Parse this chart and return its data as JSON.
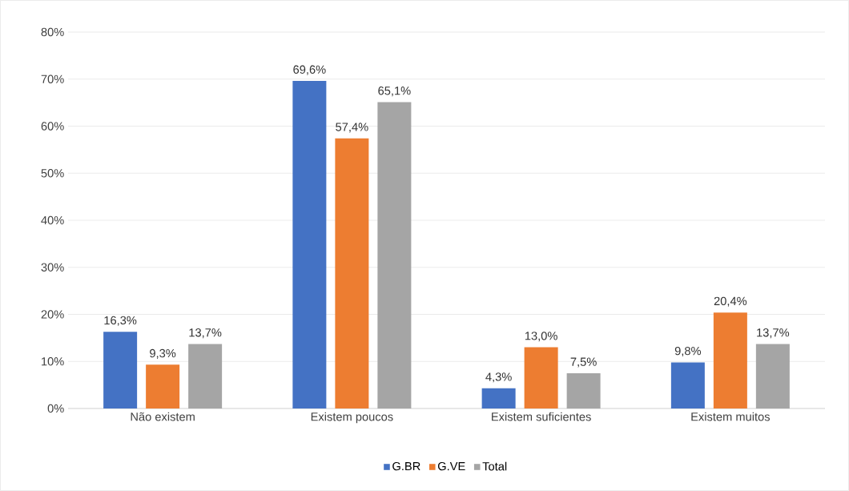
{
  "chart_data": {
    "type": "bar",
    "categories": [
      "Não existem",
      "Existem poucos",
      "Existem suficientes",
      "Existem muitos"
    ],
    "series": [
      {
        "name": "G.BR",
        "color": "#4472c4",
        "values": [
          16.3,
          69.6,
          4.3,
          9.8
        ],
        "value_labels": [
          "16,3%",
          "69,6%",
          "4,3%",
          "9,8%"
        ]
      },
      {
        "name": "G.VE",
        "color": "#ed7d31",
        "values": [
          9.3,
          57.4,
          13.0,
          20.4
        ],
        "value_labels": [
          "9,3%",
          "57,4%",
          "13,0%",
          "20,4%"
        ]
      },
      {
        "name": "Total",
        "color": "#a5a5a5",
        "values": [
          13.7,
          65.1,
          7.5,
          13.7
        ],
        "value_labels": [
          "13,7%",
          "65,1%",
          "7,5%",
          "13,7%"
        ]
      }
    ],
    "ylim": [
      0,
      80
    ],
    "yticks": [
      {
        "value": 0,
        "label": "0%"
      },
      {
        "value": 10,
        "label": "10%"
      },
      {
        "value": 20,
        "label": "20%"
      },
      {
        "value": 30,
        "label": "30%"
      },
      {
        "value": 40,
        "label": "40%"
      },
      {
        "value": 50,
        "label": "50%"
      },
      {
        "value": 60,
        "label": "60%"
      },
      {
        "value": 70,
        "label": "70%"
      },
      {
        "value": 80,
        "label": "80%"
      }
    ],
    "grid": "y",
    "legend": "bottom"
  }
}
